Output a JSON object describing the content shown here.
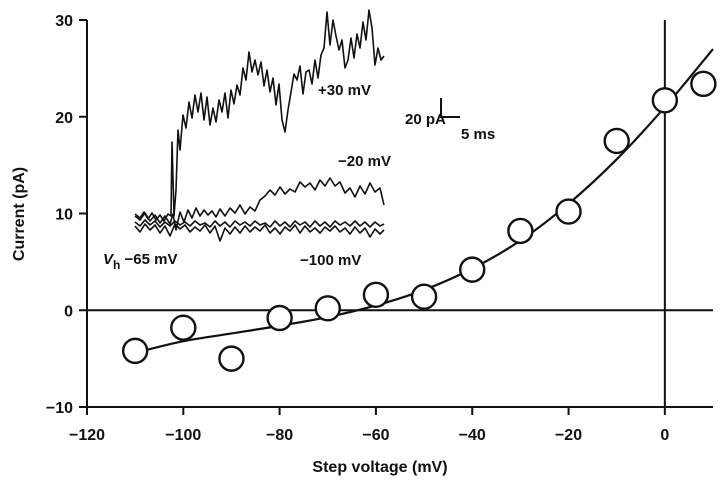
{
  "chart_data": {
    "type": "scatter",
    "xlabel": "Step voltage (mV)",
    "ylabel": "Current (pA)",
    "xlim": [
      -120,
      10
    ],
    "ylim": [
      -10,
      30
    ],
    "xticks": [
      -120,
      -100,
      -80,
      -60,
      -40,
      -20,
      0
    ],
    "yticks": [
      -10,
      0,
      10,
      20,
      30
    ],
    "grid": false,
    "reference_lines": {
      "horizontal_at_y": 0,
      "vertical_at_x": 0
    },
    "series": [
      {
        "marker": "open-circle",
        "points": [
          {
            "x": -110,
            "y": -4.2
          },
          {
            "x": -100,
            "y": -1.8
          },
          {
            "x": -90,
            "y": -5.0
          },
          {
            "x": -80,
            "y": -0.8
          },
          {
            "x": -70,
            "y": 0.2
          },
          {
            "x": -60,
            "y": 1.6
          },
          {
            "x": -50,
            "y": 1.4
          },
          {
            "x": -40,
            "y": 4.2
          },
          {
            "x": -30,
            "y": 8.2
          },
          {
            "x": -20,
            "y": 10.2
          },
          {
            "x": -10,
            "y": 17.5
          },
          {
            "x": 0,
            "y": 21.7
          },
          {
            "x": 8,
            "y": 23.4
          }
        ]
      },
      {
        "style": "solid-curve",
        "points": [
          {
            "x": -110,
            "y": -4.4
          },
          {
            "x": -100,
            "y": -3.2
          },
          {
            "x": -90,
            "y": -2.4
          },
          {
            "x": -80,
            "y": -1.6
          },
          {
            "x": -70,
            "y": -0.7
          },
          {
            "x": -60,
            "y": 0.5
          },
          {
            "x": -50,
            "y": 2.1
          },
          {
            "x": -40,
            "y": 4.3
          },
          {
            "x": -30,
            "y": 7.2
          },
          {
            "x": -20,
            "y": 11.0
          },
          {
            "x": -10,
            "y": 15.6
          },
          {
            "x": 0,
            "y": 21.0
          },
          {
            "x": 10,
            "y": 27.0
          }
        ]
      }
    ],
    "inset": {
      "trace_labels": [
        "+30 mV",
        "−20 mV",
        "−100 mV"
      ],
      "holding_label_main": "V",
      "holding_label_sub": "h",
      "holding_label_value": " −65 mV",
      "scale_bar": {
        "current_label": "20 pA",
        "time_label": "5 ms"
      }
    }
  }
}
